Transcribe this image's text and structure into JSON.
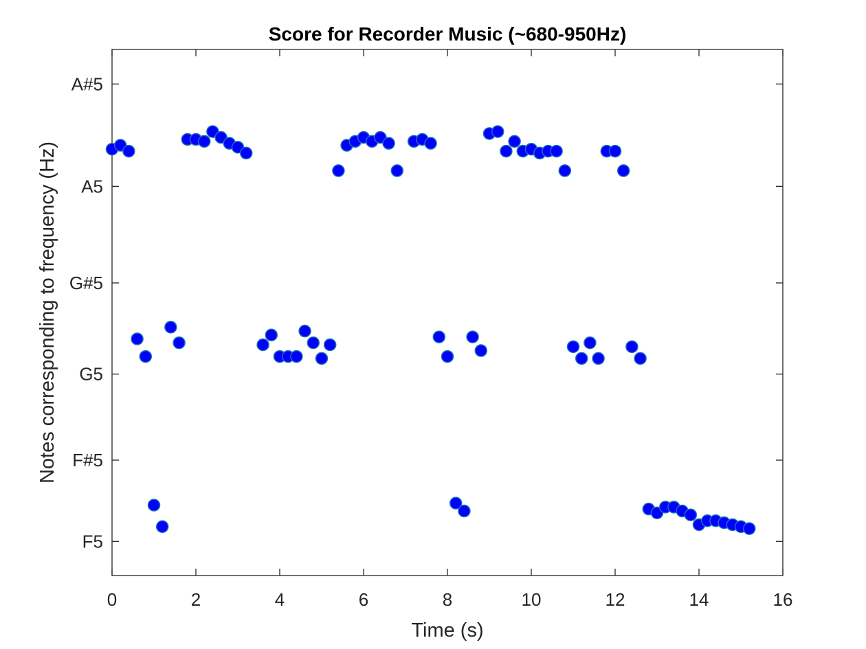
{
  "colors": {
    "marker_fill": "#0000ff",
    "marker_edge": "#1f6fb5",
    "axes": "#262626",
    "background": "#ffffff"
  },
  "chart_data": {
    "type": "scatter",
    "title": "Score for Recorder Music (~680-950Hz)",
    "xlabel": "Time (s)",
    "ylabel": "Notes corresponding to frequency (Hz)",
    "xlim": [
      0,
      16
    ],
    "ylim": [
      681,
      950
    ],
    "grid": false,
    "legend": "none",
    "x_ticks": [
      0,
      2,
      4,
      6,
      8,
      10,
      12,
      14,
      16
    ],
    "x_tick_labels": [
      "0",
      "2",
      "4",
      "6",
      "8",
      "10",
      "12",
      "14",
      "16"
    ],
    "y_ticks": [
      698.46,
      739.99,
      783.99,
      830.61,
      880.0,
      932.33
    ],
    "y_tick_labels": [
      "F5",
      "F#5",
      "G5",
      "G#5",
      "A5",
      "A#5"
    ],
    "series": [
      {
        "points": [
          [
            0.0,
            899
          ],
          [
            0.2,
            901
          ],
          [
            0.4,
            898
          ],
          [
            0.6,
            802
          ],
          [
            0.8,
            793
          ],
          [
            1.0,
            717
          ],
          [
            1.2,
            706
          ],
          [
            1.4,
            808
          ],
          [
            1.6,
            800
          ],
          [
            1.8,
            904
          ],
          [
            2.0,
            904
          ],
          [
            2.2,
            903
          ],
          [
            2.4,
            908
          ],
          [
            2.6,
            905
          ],
          [
            2.8,
            902
          ],
          [
            3.0,
            900
          ],
          [
            3.2,
            897
          ],
          [
            3.6,
            799
          ],
          [
            3.8,
            804
          ],
          [
            4.0,
            793
          ],
          [
            4.2,
            793
          ],
          [
            4.4,
            793
          ],
          [
            4.6,
            806
          ],
          [
            4.8,
            800
          ],
          [
            5.0,
            792
          ],
          [
            5.2,
            799
          ],
          [
            5.4,
            888
          ],
          [
            5.6,
            901
          ],
          [
            5.8,
            903
          ],
          [
            6.0,
            905
          ],
          [
            6.2,
            903
          ],
          [
            6.4,
            905
          ],
          [
            6.6,
            902
          ],
          [
            6.8,
            888
          ],
          [
            7.2,
            903
          ],
          [
            7.4,
            904
          ],
          [
            7.6,
            902
          ],
          [
            7.8,
            803
          ],
          [
            8.0,
            793
          ],
          [
            8.2,
            718
          ],
          [
            8.4,
            714
          ],
          [
            8.6,
            803
          ],
          [
            8.8,
            796
          ],
          [
            9.0,
            907
          ],
          [
            9.2,
            908
          ],
          [
            9.4,
            898
          ],
          [
            9.6,
            903
          ],
          [
            9.8,
            898
          ],
          [
            10.0,
            899
          ],
          [
            10.2,
            897
          ],
          [
            10.4,
            898
          ],
          [
            10.6,
            898
          ],
          [
            10.8,
            888
          ],
          [
            11.0,
            798
          ],
          [
            11.2,
            792
          ],
          [
            11.4,
            800
          ],
          [
            11.6,
            792
          ],
          [
            11.8,
            898
          ],
          [
            12.0,
            898
          ],
          [
            12.2,
            888
          ],
          [
            12.4,
            798
          ],
          [
            12.6,
            792
          ],
          [
            12.8,
            715
          ],
          [
            13.0,
            713
          ],
          [
            13.2,
            716
          ],
          [
            13.4,
            716
          ],
          [
            13.6,
            714
          ],
          [
            13.8,
            712
          ],
          [
            14.0,
            707
          ],
          [
            14.2,
            709
          ],
          [
            14.4,
            709
          ],
          [
            14.6,
            708
          ],
          [
            14.8,
            707
          ],
          [
            15.0,
            706
          ],
          [
            15.2,
            705
          ]
        ]
      }
    ]
  }
}
